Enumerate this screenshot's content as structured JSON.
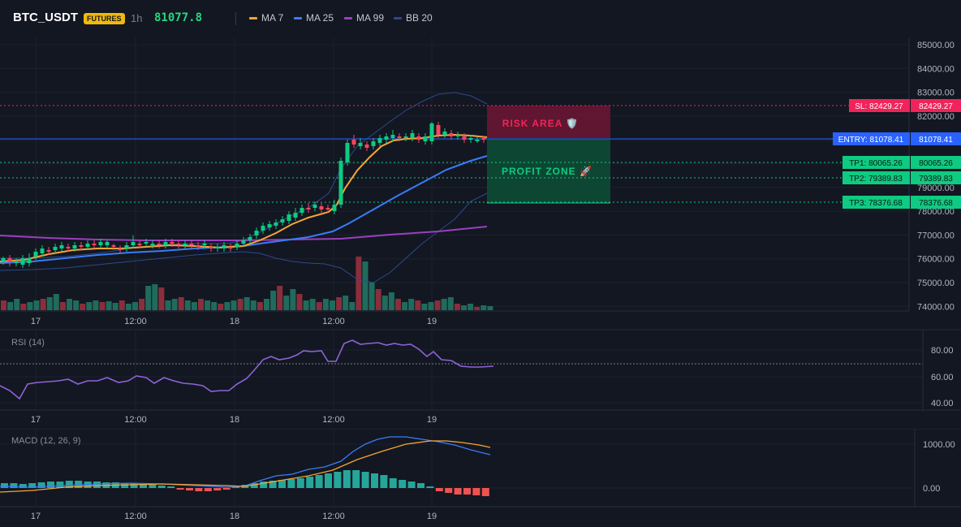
{
  "header": {
    "symbol": "BTC_USDT",
    "badge": "FUTURES",
    "timeframe": "1h",
    "last_price": "81077.8",
    "legend": [
      {
        "label": "MA 7",
        "color": "#f7a534"
      },
      {
        "label": "MA 25",
        "color": "#3a7cf7"
      },
      {
        "label": "MA 99",
        "color": "#9c3fbf"
      },
      {
        "label": "BB 20",
        "color": "#2b4a8c"
      }
    ]
  },
  "colors": {
    "up": "#26a69a",
    "up_bright": "#0ecb81",
    "down": "#f6465d",
    "sl": "#f0245a",
    "entry": "#2962ff",
    "tp": "#0ecb81",
    "rsi": "#8e63d8",
    "macd": "#3a7cf7",
    "signal": "#f7a534"
  },
  "price_axis": {
    "ticks": [
      "85000.00",
      "84000.00",
      "83000.00",
      "82000.00",
      "81000.00",
      "80000.00",
      "79000.00",
      "78000.00",
      "77000.00",
      "76000.00",
      "75000.00",
      "74000.00"
    ]
  },
  "time_axis": [
    "17",
    "12:00",
    "18",
    "12:00",
    "19"
  ],
  "levels": {
    "sl": {
      "tag": "SL: 82429.27",
      "value": "82429.27"
    },
    "entry": {
      "tag": "ENTRY: 81078.41",
      "value": "81078.41"
    },
    "tp1": {
      "tag": "TP1: 80065.26",
      "value": "80065.26"
    },
    "tp2": {
      "tag": "TP2: 79389.83",
      "value": "79389.83"
    },
    "tp3": {
      "tag": "TP3: 78376.68",
      "value": "78376.68"
    }
  },
  "zones": {
    "risk_label": "RISK AREA 🛡️",
    "profit_label": "PROFIT ZONE 🚀"
  },
  "rsi": {
    "title": "RSI (14)",
    "ticks": [
      "80.00",
      "60.00",
      "40.00"
    ]
  },
  "macd": {
    "title": "MACD (12, 26, 9)",
    "ticks": [
      "1000.00",
      "0.00"
    ]
  }
}
